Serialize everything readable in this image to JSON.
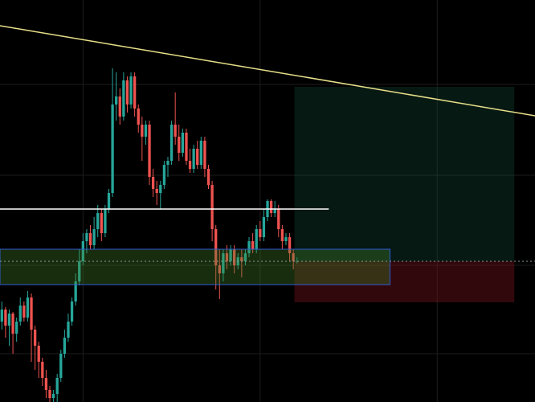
{
  "chart_data": {
    "type": "candlestick",
    "background": "#000000",
    "up_color": "#26a69a",
    "down_color": "#ef5350",
    "grid": true,
    "grid_color": "#1c1c1c",
    "xlim": [
      -0.5,
      144.5
    ],
    "ylim": [
      0,
      500
    ],
    "xticks": [
      22,
      70,
      118
    ],
    "yticks": [
      60,
      170,
      282,
      395
    ],
    "open": [
      100,
      115,
      95,
      110,
      85,
      100,
      120,
      105,
      130,
      90,
      70,
      50,
      30,
      15,
      5,
      10,
      30,
      60,
      80,
      100,
      125,
      150,
      175,
      200,
      210,
      195,
      215,
      235,
      210,
      240,
      260,
      370,
      380,
      355,
      400,
      370,
      405,
      365,
      345,
      330,
      345,
      280,
      265,
      260,
      270,
      295,
      300,
      345,
      330,
      310,
      335,
      300,
      290,
      315,
      295,
      325,
      290,
      270,
      215,
      170,
      160,
      185,
      175,
      190,
      170,
      180,
      175,
      185,
      200,
      190,
      215,
      205,
      230,
      250,
      235,
      240,
      215,
      200,
      205,
      185,
      175
    ],
    "close": [
      115,
      95,
      110,
      85,
      100,
      120,
      105,
      130,
      90,
      70,
      50,
      30,
      15,
      5,
      10,
      30,
      60,
      80,
      100,
      125,
      150,
      175,
      200,
      210,
      195,
      215,
      235,
      210,
      240,
      260,
      370,
      380,
      355,
      400,
      370,
      405,
      365,
      345,
      330,
      345,
      280,
      265,
      260,
      270,
      295,
      300,
      345,
      330,
      310,
      335,
      300,
      290,
      315,
      295,
      325,
      290,
      270,
      215,
      170,
      160,
      185,
      175,
      190,
      170,
      180,
      175,
      185,
      200,
      190,
      215,
      205,
      230,
      250,
      235,
      240,
      215,
      200,
      205,
      185,
      175,
      175
    ],
    "high": [
      125,
      118,
      115,
      112,
      105,
      130,
      125,
      138,
      135,
      95,
      75,
      55,
      40,
      20,
      15,
      35,
      65,
      90,
      110,
      130,
      160,
      190,
      210,
      215,
      220,
      230,
      245,
      240,
      245,
      265,
      415,
      410,
      390,
      410,
      405,
      410,
      410,
      370,
      355,
      350,
      350,
      290,
      275,
      275,
      300,
      305,
      350,
      385,
      345,
      340,
      340,
      315,
      320,
      325,
      330,
      330,
      295,
      275,
      220,
      190,
      190,
      195,
      195,
      195,
      185,
      190,
      190,
      205,
      210,
      220,
      225,
      240,
      252,
      252,
      250,
      245,
      220,
      210,
      210,
      190,
      180
    ],
    "low": [
      90,
      80,
      70,
      60,
      75,
      95,
      100,
      100,
      50,
      40,
      30,
      20,
      5,
      0,
      0,
      0,
      25,
      55,
      75,
      95,
      120,
      145,
      170,
      185,
      190,
      190,
      205,
      200,
      205,
      235,
      255,
      350,
      345,
      350,
      360,
      365,
      355,
      335,
      300,
      320,
      270,
      255,
      245,
      240,
      265,
      280,
      295,
      320,
      300,
      305,
      295,
      285,
      285,
      290,
      290,
      280,
      265,
      200,
      140,
      128,
      150,
      165,
      170,
      160,
      165,
      155,
      170,
      180,
      185,
      185,
      200,
      200,
      225,
      230,
      230,
      205,
      190,
      195,
      175,
      165,
      172
    ],
    "drawings": [
      {
        "kind": "rect",
        "x": [
          79.3,
          138.9
        ],
        "y": [
          175,
          392
        ],
        "fill": "rgba(20,90,70,0.28)",
        "stroke": "none"
      },
      {
        "kind": "rect",
        "x": [
          79.3,
          138.9
        ],
        "y": [
          124,
          175
        ],
        "fill": "rgba(130,20,30,0.38)",
        "stroke": "none"
      },
      {
        "kind": "rect",
        "x": [
          -0.5,
          105.2
        ],
        "y": [
          146,
          190
        ],
        "fill": "rgba(70,130,40,0.35)",
        "stroke": "#2f5bd3"
      },
      {
        "kind": "line",
        "x": [
          -0.5,
          144.5
        ],
        "y": [
          175,
          175
        ],
        "color": "#8a9a9a",
        "dashed": true
      },
      {
        "kind": "line",
        "x": [
          -0.5,
          88.6
        ],
        "y": [
          240,
          240
        ],
        "color": "#ffffff",
        "dashed": false
      },
      {
        "kind": "line",
        "x": [
          -0.5,
          144.5
        ],
        "y": [
          468,
          356
        ],
        "color": "#e8e08a",
        "dashed": false
      }
    ]
  }
}
